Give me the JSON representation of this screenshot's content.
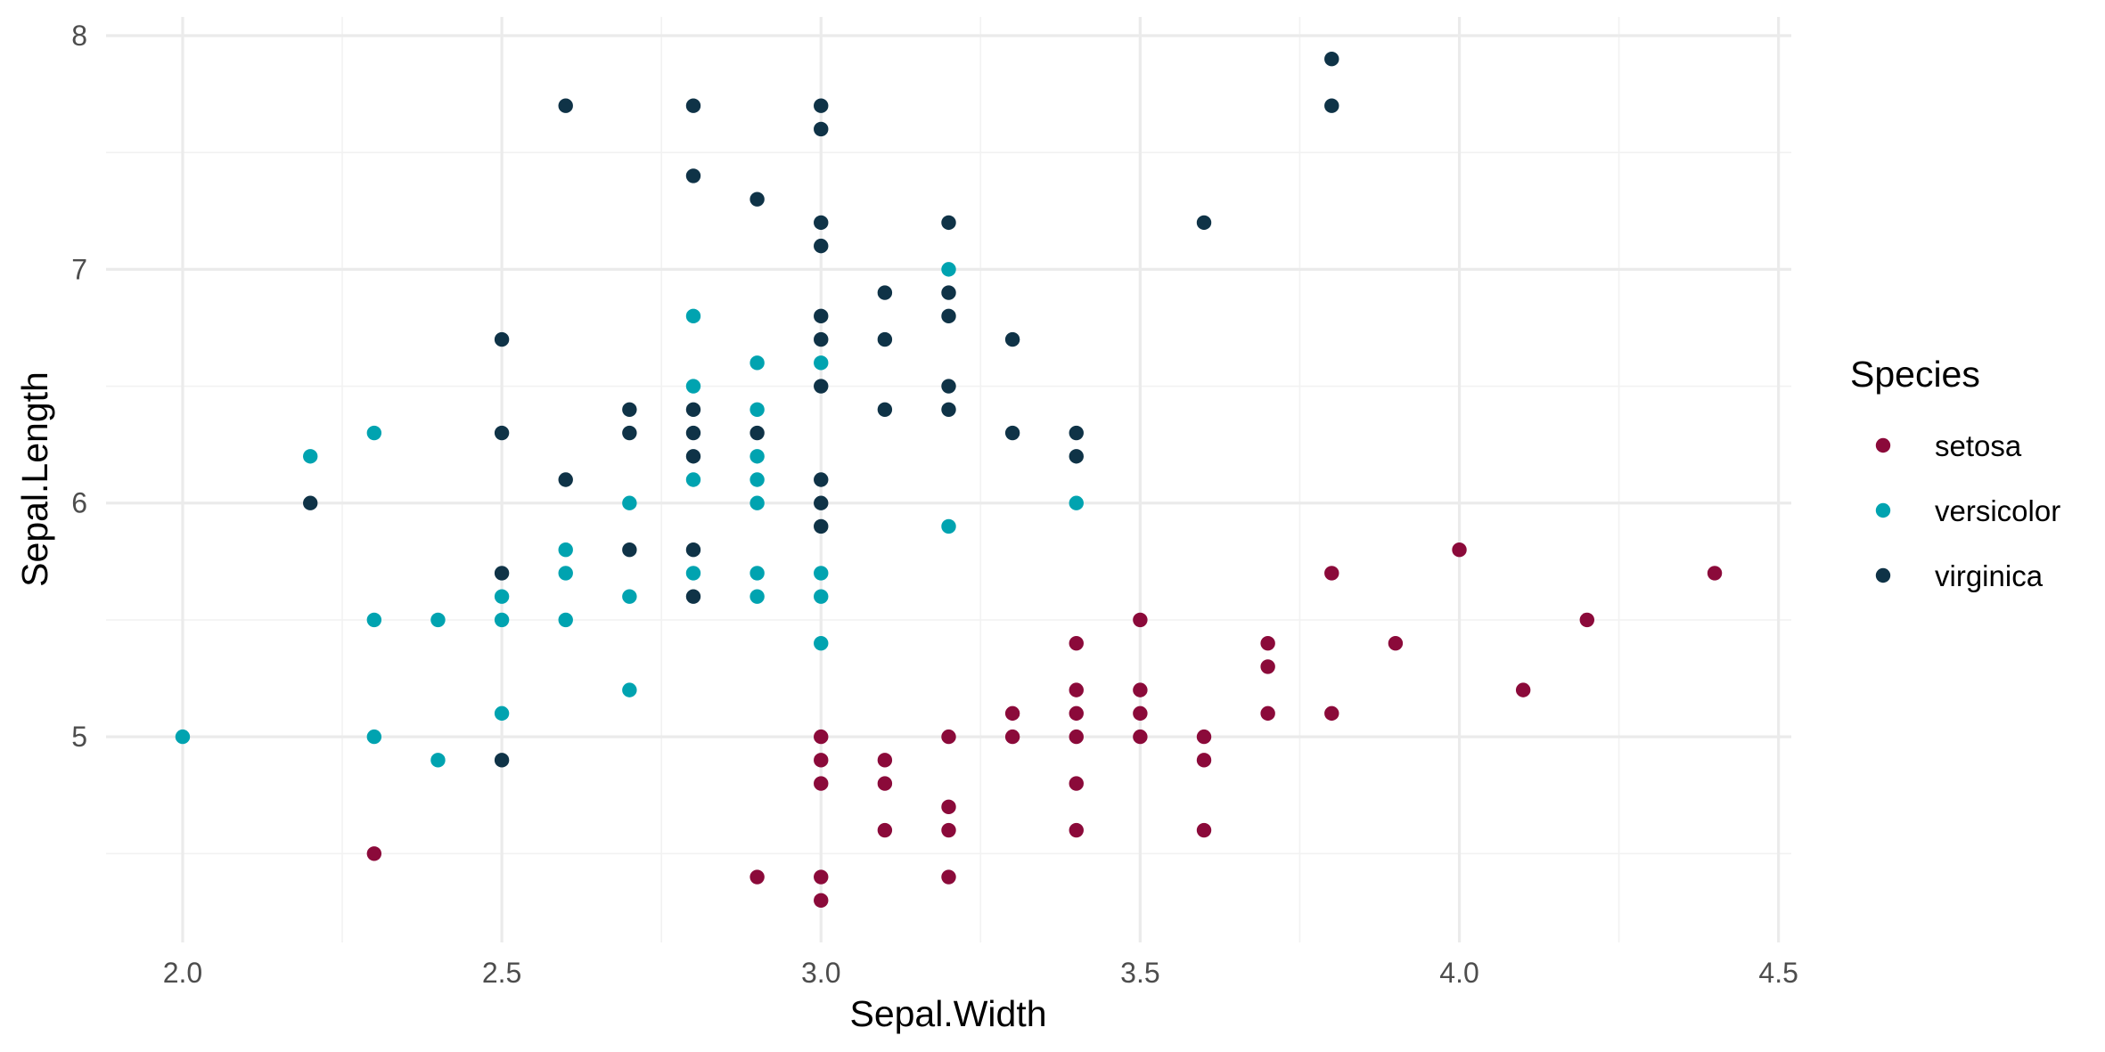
{
  "chart_data": {
    "type": "scatter",
    "title": "",
    "xlabel": "Sepal.Width",
    "ylabel": "Sepal.Length",
    "xlim": [
      1.88,
      4.52
    ],
    "ylim": [
      4.12,
      8.08
    ],
    "xticks": [
      2.0,
      2.5,
      3.0,
      3.5,
      4.0,
      4.5
    ],
    "xtick_labels": [
      "2.0",
      "2.5",
      "3.0",
      "3.5",
      "4.0",
      "4.5"
    ],
    "yticks": [
      5,
      6,
      7,
      8
    ],
    "ytick_labels": [
      "5",
      "6",
      "7",
      "8"
    ],
    "grid": true,
    "legend": {
      "title": "Species",
      "placement": "right"
    },
    "series": [
      {
        "name": "setosa",
        "color": "#8b0a3a",
        "points": [
          [
            2.3,
            4.5
          ],
          [
            2.9,
            4.4
          ],
          [
            3.0,
            5.0
          ],
          [
            3.0,
            4.9
          ],
          [
            3.0,
            4.8
          ],
          [
            3.0,
            4.4
          ],
          [
            3.0,
            4.3
          ],
          [
            3.1,
            4.9
          ],
          [
            3.1,
            4.8
          ],
          [
            3.1,
            4.6
          ],
          [
            3.2,
            5.0
          ],
          [
            3.2,
            4.7
          ],
          [
            3.2,
            4.6
          ],
          [
            3.2,
            4.4
          ],
          [
            3.3,
            5.1
          ],
          [
            3.3,
            5.0
          ],
          [
            3.4,
            5.4
          ],
          [
            3.4,
            5.2
          ],
          [
            3.4,
            5.1
          ],
          [
            3.4,
            5.0
          ],
          [
            3.4,
            4.8
          ],
          [
            3.4,
            4.6
          ],
          [
            3.5,
            5.5
          ],
          [
            3.5,
            5.2
          ],
          [
            3.5,
            5.1
          ],
          [
            3.5,
            5.0
          ],
          [
            3.6,
            5.0
          ],
          [
            3.6,
            4.9
          ],
          [
            3.6,
            4.6
          ],
          [
            3.7,
            5.4
          ],
          [
            3.7,
            5.3
          ],
          [
            3.7,
            5.1
          ],
          [
            3.8,
            5.7
          ],
          [
            3.8,
            5.1
          ],
          [
            3.9,
            5.4
          ],
          [
            4.0,
            5.8
          ],
          [
            4.1,
            5.2
          ],
          [
            4.2,
            5.5
          ],
          [
            4.4,
            5.7
          ]
        ]
      },
      {
        "name": "versicolor",
        "color": "#00a3b0",
        "points": [
          [
            2.0,
            5.0
          ],
          [
            2.2,
            6.2
          ],
          [
            2.3,
            6.3
          ],
          [
            2.3,
            5.5
          ],
          [
            2.3,
            5.0
          ],
          [
            2.4,
            5.5
          ],
          [
            2.4,
            4.9
          ],
          [
            2.5,
            5.6
          ],
          [
            2.5,
            5.5
          ],
          [
            2.5,
            5.1
          ],
          [
            2.6,
            5.8
          ],
          [
            2.6,
            5.7
          ],
          [
            2.6,
            5.5
          ],
          [
            2.7,
            6.0
          ],
          [
            2.7,
            5.6
          ],
          [
            2.7,
            5.2
          ],
          [
            2.8,
            6.8
          ],
          [
            2.8,
            6.5
          ],
          [
            2.8,
            6.1
          ],
          [
            2.8,
            5.7
          ],
          [
            2.9,
            6.6
          ],
          [
            2.9,
            6.4
          ],
          [
            2.9,
            6.2
          ],
          [
            2.9,
            6.1
          ],
          [
            2.9,
            6.0
          ],
          [
            2.9,
            5.7
          ],
          [
            2.9,
            5.6
          ],
          [
            3.0,
            6.6
          ],
          [
            3.0,
            5.7
          ],
          [
            3.0,
            5.6
          ],
          [
            3.0,
            5.4
          ],
          [
            3.2,
            7.0
          ],
          [
            3.2,
            5.9
          ],
          [
            3.4,
            6.0
          ]
        ]
      },
      {
        "name": "virginica",
        "color": "#0f3347",
        "points": [
          [
            2.2,
            6.0
          ],
          [
            2.5,
            6.7
          ],
          [
            2.5,
            6.3
          ],
          [
            2.5,
            5.7
          ],
          [
            2.5,
            4.9
          ],
          [
            2.6,
            7.7
          ],
          [
            2.6,
            6.1
          ],
          [
            2.7,
            6.4
          ],
          [
            2.7,
            6.3
          ],
          [
            2.7,
            5.8
          ],
          [
            2.8,
            7.7
          ],
          [
            2.8,
            7.4
          ],
          [
            2.8,
            6.4
          ],
          [
            2.8,
            6.3
          ],
          [
            2.8,
            6.2
          ],
          [
            2.8,
            5.8
          ],
          [
            2.8,
            5.6
          ],
          [
            2.9,
            7.3
          ],
          [
            2.9,
            6.3
          ],
          [
            3.0,
            7.7
          ],
          [
            3.0,
            7.6
          ],
          [
            3.0,
            7.2
          ],
          [
            3.0,
            7.1
          ],
          [
            3.0,
            6.8
          ],
          [
            3.0,
            6.7
          ],
          [
            3.0,
            6.5
          ],
          [
            3.0,
            6.1
          ],
          [
            3.0,
            6.0
          ],
          [
            3.0,
            5.9
          ],
          [
            3.1,
            6.9
          ],
          [
            3.1,
            6.7
          ],
          [
            3.1,
            6.4
          ],
          [
            3.2,
            7.2
          ],
          [
            3.2,
            6.9
          ],
          [
            3.2,
            6.8
          ],
          [
            3.2,
            6.5
          ],
          [
            3.2,
            6.4
          ],
          [
            3.3,
            6.7
          ],
          [
            3.3,
            6.3
          ],
          [
            3.4,
            6.3
          ],
          [
            3.4,
            6.2
          ],
          [
            3.6,
            7.2
          ],
          [
            3.8,
            7.9
          ],
          [
            3.8,
            7.7
          ]
        ]
      }
    ]
  }
}
